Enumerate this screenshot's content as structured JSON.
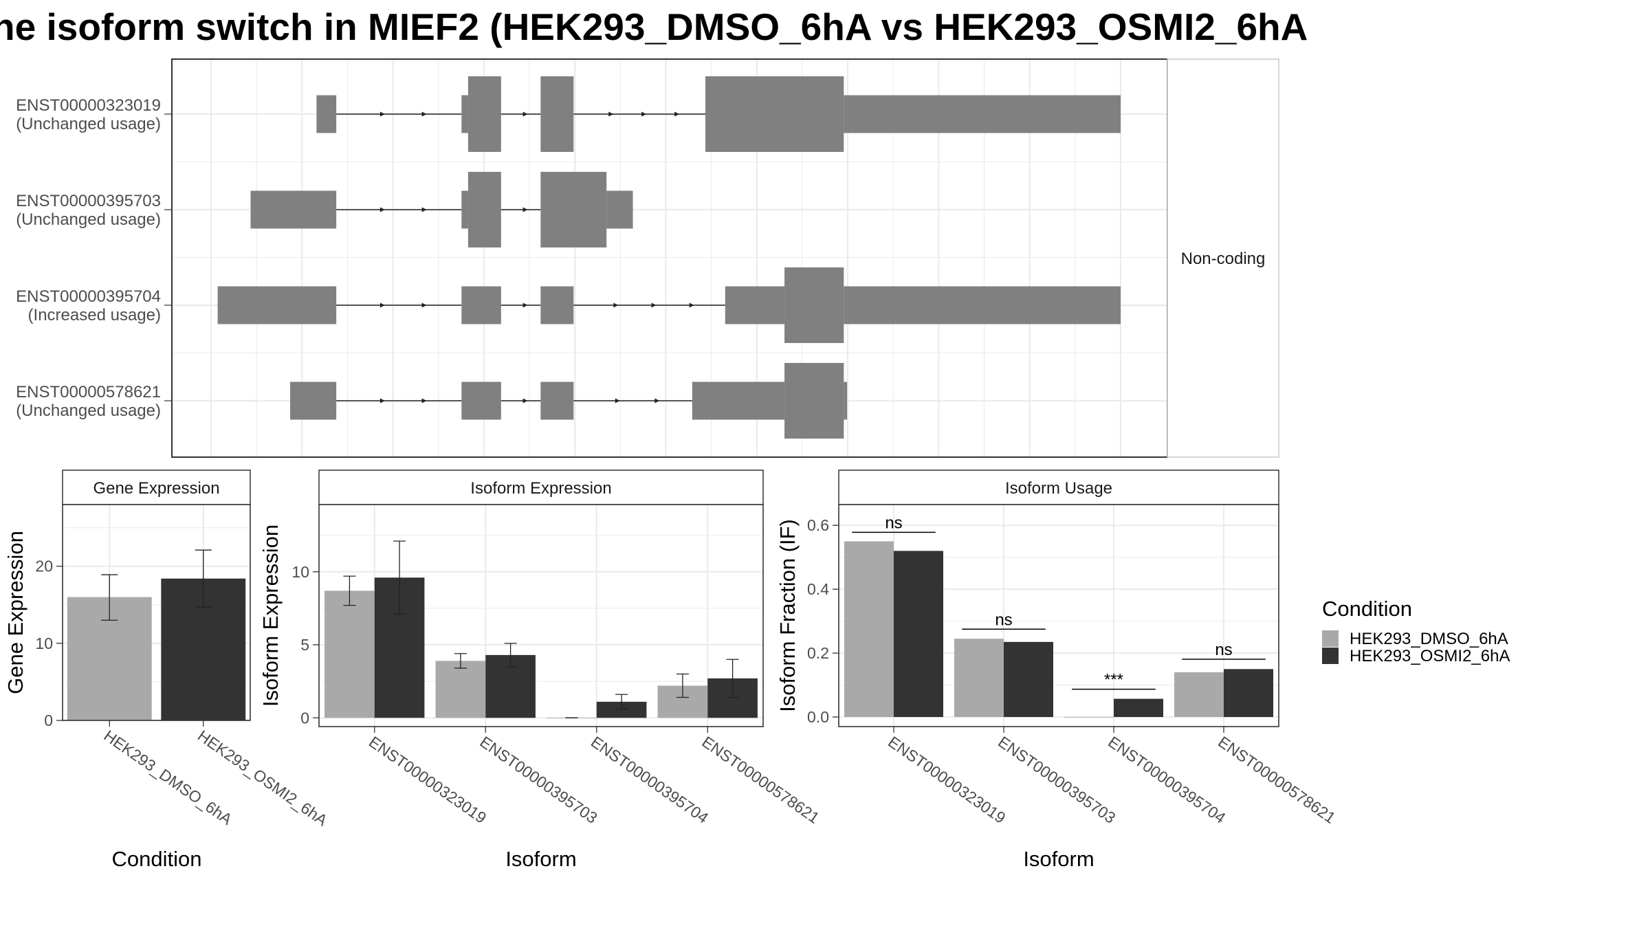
{
  "title": "ne isoform switch in MIEF2 (HEK293_DMSO_6hA vs HEK293_OSMI2_6hA",
  "colors": {
    "dmso": "#a9a9a9",
    "osmi2": "#333333",
    "exon": "#808080",
    "grid": "#ebebeb",
    "frame": "#333333"
  },
  "legend": {
    "title": "Condition",
    "items": [
      {
        "label": "HEK293_DMSO_6hA",
        "color": "#a9a9a9"
      },
      {
        "label": "HEK293_OSMI2_6hA",
        "color": "#333333"
      }
    ]
  },
  "structure": {
    "side_label": "Non-coding",
    "transcripts": [
      {
        "id": "ENST00000323019",
        "usage": "(Unchanged usage)",
        "exons": [
          [
            0.16,
            0.19,
            "u"
          ],
          [
            0.38,
            0.39,
            "u"
          ],
          [
            0.39,
            0.44,
            "c"
          ],
          [
            0.5,
            0.55,
            "c"
          ],
          [
            0.75,
            0.96,
            "c"
          ],
          [
            0.96,
            1.38,
            "u"
          ]
        ]
      },
      {
        "id": "ENST00000395703",
        "usage": "(Unchanged usage)",
        "exons": [
          [
            0.06,
            0.19,
            "u"
          ],
          [
            0.38,
            0.39,
            "u"
          ],
          [
            0.39,
            0.44,
            "c"
          ],
          [
            0.5,
            0.6,
            "c"
          ],
          [
            0.6,
            0.64,
            "u"
          ]
        ]
      },
      {
        "id": "ENST00000395704",
        "usage": "(Increased usage)",
        "exons": [
          [
            0.01,
            0.19,
            "u"
          ],
          [
            0.38,
            0.44,
            "u"
          ],
          [
            0.5,
            0.55,
            "u"
          ],
          [
            0.78,
            0.87,
            "u"
          ],
          [
            0.87,
            0.96,
            "c"
          ],
          [
            0.96,
            1.38,
            "u"
          ]
        ]
      },
      {
        "id": "ENST00000578621",
        "usage": "(Unchanged usage)",
        "exons": [
          [
            0.12,
            0.19,
            "u"
          ],
          [
            0.38,
            0.44,
            "u"
          ],
          [
            0.5,
            0.55,
            "u"
          ],
          [
            0.73,
            0.87,
            "u"
          ],
          [
            0.87,
            0.96,
            "c"
          ],
          [
            0.96,
            0.965,
            "u"
          ]
        ]
      }
    ]
  },
  "chart_data": [
    {
      "type": "bar",
      "title": "Gene Expression",
      "xlabel": "Condition",
      "ylabel": "Gene Expression",
      "ylim": [
        0,
        28
      ],
      "yticks": [
        0,
        10,
        20
      ],
      "categories": [
        "HEK293_DMSO_6hA",
        "HEK293_OSMI2_6hA"
      ],
      "series": [
        {
          "name": "HEK293_DMSO_6hA",
          "values": [
            16.0,
            null
          ],
          "error": [
            [
              13.0,
              18.9
            ],
            null
          ]
        },
        {
          "name": "HEK293_OSMI2_6hA",
          "values": [
            null,
            18.4
          ],
          "error": [
            null,
            [
              14.7,
              22.1
            ]
          ]
        }
      ]
    },
    {
      "type": "bar",
      "title": "Isoform Expression",
      "xlabel": "Isoform",
      "ylabel": "Isoform Expression",
      "ylim": [
        -0.6,
        14.6
      ],
      "yticks": [
        0,
        5,
        10
      ],
      "categories": [
        "ENST00000323019",
        "ENST00000395703",
        "ENST00000395704",
        "ENST00000578621"
      ],
      "series": [
        {
          "name": "HEK293_DMSO_6hA",
          "values": [
            8.7,
            3.9,
            0.0,
            2.2
          ],
          "error": [
            [
              7.7,
              9.7
            ],
            [
              3.4,
              4.4
            ],
            [
              0.0,
              0.0
            ],
            [
              1.4,
              3.0
            ]
          ]
        },
        {
          "name": "HEK293_OSMI2_6hA",
          "values": [
            9.6,
            4.3,
            1.1,
            2.7
          ],
          "error": [
            [
              7.1,
              12.1
            ],
            [
              3.5,
              5.1
            ],
            [
              0.6,
              1.6
            ],
            [
              1.4,
              4.0
            ]
          ]
        }
      ]
    },
    {
      "type": "bar",
      "title": "Isoform Usage",
      "xlabel": "Isoform",
      "ylabel": "Isoform Fraction (IF)",
      "ylim": [
        -0.03,
        0.665
      ],
      "yticks": [
        0.0,
        0.2,
        0.4,
        0.6
      ],
      "categories": [
        "ENST00000323019",
        "ENST00000395703",
        "ENST00000395704",
        "ENST00000578621"
      ],
      "series": [
        {
          "name": "HEK293_DMSO_6hA",
          "values": [
            0.55,
            0.245,
            0.0,
            0.14
          ]
        },
        {
          "name": "HEK293_OSMI2_6hA",
          "values": [
            0.52,
            0.235,
            0.057,
            0.15
          ]
        }
      ],
      "annotations": [
        {
          "category": "ENST00000323019",
          "label": "ns",
          "y": 0.578
        },
        {
          "category": "ENST00000395703",
          "label": "ns",
          "y": 0.275
        },
        {
          "category": "ENST00000395704",
          "label": "***",
          "y": 0.087
        },
        {
          "category": "ENST00000578621",
          "label": "ns",
          "y": 0.181
        }
      ]
    }
  ]
}
